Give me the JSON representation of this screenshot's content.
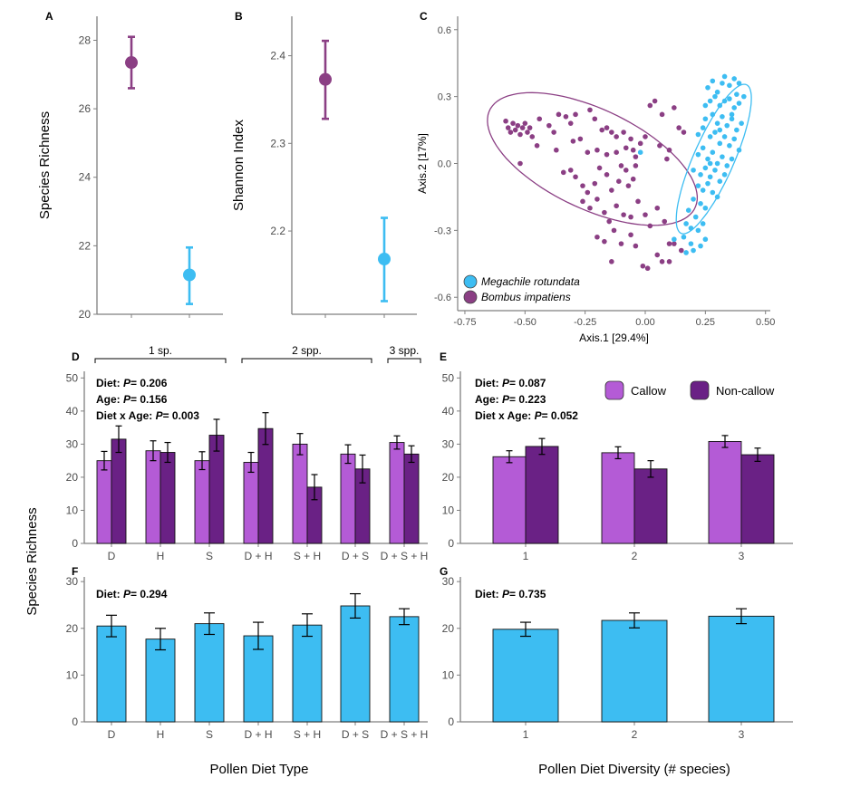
{
  "colors": {
    "megachile": "#3dbdf2",
    "bombus": "#8b3f84",
    "callow": "#b45bd6",
    "noncallow": "#6a2185",
    "diet_bar": "#3dbdf2",
    "axis": "#7f7f7f"
  },
  "labels": {
    "species_richness": "Species Richness",
    "pollen_diet_type": "Pollen Diet Type",
    "pollen_diet_diversity": "Pollen Diet Diversity (# species)"
  },
  "chart_data": [
    {
      "id": "A",
      "panel": "A",
      "type": "scatter",
      "ylabel": "Species Richness",
      "yticks": [
        "20",
        "22",
        "24",
        "26",
        "28"
      ],
      "ylim": [
        20,
        28.7
      ],
      "points": [
        {
          "group": "Bombus impatiens",
          "color": "#8b3f84",
          "y": 27.35,
          "lower": 26.6,
          "upper": 28.1
        },
        {
          "group": "Megachile rotundata",
          "color": "#3dbdf2",
          "y": 21.15,
          "lower": 20.3,
          "upper": 21.95
        }
      ]
    },
    {
      "id": "B",
      "panel": "B",
      "type": "scatter",
      "ylabel": "Shannon Index",
      "yticks": [
        "2.2",
        "2.3",
        "2.4"
      ],
      "ylim": [
        2.105,
        2.445
      ],
      "points": [
        {
          "group": "Bombus impatiens",
          "color": "#8b3f84",
          "y": 2.373,
          "lower": 2.328,
          "upper": 2.417
        },
        {
          "group": "Megachile rotundata",
          "color": "#3dbdf2",
          "y": 2.168,
          "lower": 2.12,
          "upper": 2.215
        }
      ]
    },
    {
      "id": "C",
      "panel": "C",
      "type": "scatter",
      "xlabel": "Axis.1   [29.4%]",
      "ylabel": "Axis.2   [17%]",
      "xticks": [
        "-0.75",
        "-0.50",
        "-0.25",
        "0.00",
        "0.25",
        "0.50"
      ],
      "yticks": [
        "-0.6",
        "-0.3",
        "0.0",
        "0.3",
        "0.6"
      ],
      "xlim": [
        -0.78,
        0.52
      ],
      "ylim": [
        -0.66,
        0.66
      ],
      "legend": [
        {
          "label": "Megachile rotundata",
          "color": "#3dbdf2"
        },
        {
          "label": "Bombus impatiens",
          "color": "#8b3f84"
        }
      ],
      "ellipses": [
        {
          "group": "Bombus impatiens",
          "color": "#8b3f84",
          "cx": -0.22,
          "cy": 0.02,
          "rx": 0.48,
          "ry": 0.22,
          "angle_deg": -28
        },
        {
          "group": "Megachile rotundata",
          "color": "#3dbdf2",
          "cx": 0.285,
          "cy": 0.02,
          "rx": 0.36,
          "ry": 0.085,
          "angle_deg": 68
        }
      ],
      "series": [
        {
          "name": "Bombus impatiens",
          "color": "#8b3f84",
          "points": [
            [
              -0.58,
              0.19
            ],
            [
              -0.57,
              0.16
            ],
            [
              -0.56,
              0.14
            ],
            [
              -0.55,
              0.18
            ],
            [
              -0.54,
              0.15
            ],
            [
              -0.53,
              0.17
            ],
            [
              -0.52,
              0.13
            ],
            [
              -0.51,
              0.16
            ],
            [
              -0.5,
              0.18
            ],
            [
              -0.49,
              0.14
            ],
            [
              -0.48,
              0.16
            ],
            [
              -0.47,
              0.12
            ],
            [
              -0.44,
              0.2
            ],
            [
              -0.4,
              0.17
            ],
            [
              -0.38,
              0.14
            ],
            [
              -0.36,
              0.22
            ],
            [
              -0.33,
              0.21
            ],
            [
              -0.31,
              0.18
            ],
            [
              -0.29,
              0.22
            ],
            [
              -0.27,
              0.11
            ],
            [
              -0.23,
              0.24
            ],
            [
              -0.21,
              0.2
            ],
            [
              -0.18,
              0.15
            ],
            [
              -0.16,
              0.16
            ],
            [
              -0.14,
              0.14
            ],
            [
              -0.12,
              0.12
            ],
            [
              -0.09,
              0.14
            ],
            [
              -0.06,
              0.11
            ],
            [
              -0.04,
              0.03
            ],
            [
              -0.02,
              0.09
            ],
            [
              0.0,
              0.12
            ],
            [
              0.02,
              0.26
            ],
            [
              0.04,
              0.28
            ],
            [
              0.07,
              0.22
            ],
            [
              0.12,
              0.25
            ],
            [
              0.14,
              0.16
            ],
            [
              0.16,
              0.14
            ],
            [
              0.06,
              0.08
            ],
            [
              0.1,
              0.06
            ],
            [
              0.09,
              0.02
            ],
            [
              -0.45,
              0.08
            ],
            [
              -0.52,
              0.0
            ],
            [
              -0.37,
              0.06
            ],
            [
              -0.3,
              0.1
            ],
            [
              -0.24,
              0.05
            ],
            [
              -0.2,
              0.06
            ],
            [
              -0.16,
              0.04
            ],
            [
              -0.12,
              0.05
            ],
            [
              -0.08,
              0.07
            ],
            [
              -0.05,
              0.06
            ],
            [
              -0.34,
              -0.04
            ],
            [
              -0.31,
              -0.03
            ],
            [
              -0.29,
              -0.06
            ],
            [
              -0.26,
              -0.1
            ],
            [
              -0.24,
              -0.13
            ],
            [
              -0.21,
              -0.09
            ],
            [
              -0.19,
              -0.02
            ],
            [
              -0.16,
              -0.05
            ],
            [
              -0.14,
              -0.12
            ],
            [
              -0.11,
              -0.08
            ],
            [
              -0.08,
              -0.03
            ],
            [
              -0.07,
              -0.1
            ],
            [
              -0.05,
              -0.07
            ],
            [
              -0.1,
              -0.01
            ],
            [
              -0.04,
              -0.01
            ],
            [
              -0.26,
              -0.17
            ],
            [
              -0.23,
              -0.2
            ],
            [
              -0.2,
              -0.16
            ],
            [
              -0.17,
              -0.22
            ],
            [
              -0.15,
              -0.26
            ],
            [
              -0.12,
              -0.19
            ],
            [
              -0.09,
              -0.23
            ],
            [
              -0.06,
              -0.24
            ],
            [
              -0.03,
              -0.17
            ],
            [
              0.0,
              -0.23
            ],
            [
              0.02,
              -0.28
            ],
            [
              0.05,
              -0.2
            ],
            [
              0.08,
              -0.26
            ],
            [
              0.1,
              -0.36
            ],
            [
              -0.2,
              -0.33
            ],
            [
              -0.17,
              -0.35
            ],
            [
              -0.13,
              -0.3
            ],
            [
              -0.1,
              -0.36
            ],
            [
              -0.06,
              -0.32
            ],
            [
              -0.04,
              -0.37
            ],
            [
              -0.01,
              -0.46
            ],
            [
              0.01,
              -0.47
            ],
            [
              0.05,
              -0.41
            ],
            [
              0.07,
              -0.44
            ],
            [
              0.12,
              -0.36
            ],
            [
              0.15,
              -0.39
            ],
            [
              -0.14,
              -0.44
            ],
            [
              0.1,
              -0.44
            ]
          ]
        },
        {
          "name": "Megachile rotundata",
          "color": "#3dbdf2",
          "points": [
            [
              0.26,
              0.34
            ],
            [
              0.28,
              0.37
            ],
            [
              0.3,
              0.32
            ],
            [
              0.32,
              0.36
            ],
            [
              0.33,
              0.39
            ],
            [
              0.35,
              0.35
            ],
            [
              0.37,
              0.38
            ],
            [
              0.38,
              0.31
            ],
            [
              0.39,
              0.36
            ],
            [
              0.27,
              0.28
            ],
            [
              0.29,
              0.3
            ],
            [
              0.31,
              0.26
            ],
            [
              0.33,
              0.28
            ],
            [
              0.35,
              0.29
            ],
            [
              0.37,
              0.25
            ],
            [
              0.39,
              0.27
            ],
            [
              0.41,
              0.3
            ],
            [
              0.36,
              0.22
            ],
            [
              0.25,
              0.2
            ],
            [
              0.28,
              0.22
            ],
            [
              0.3,
              0.18
            ],
            [
              0.32,
              0.21
            ],
            [
              0.34,
              0.17
            ],
            [
              0.36,
              0.2
            ],
            [
              0.38,
              0.15
            ],
            [
              0.4,
              0.18
            ],
            [
              0.22,
              0.13
            ],
            [
              0.24,
              0.16
            ],
            [
              0.27,
              0.12
            ],
            [
              0.29,
              0.14
            ],
            [
              0.31,
              0.09
            ],
            [
              0.33,
              0.12
            ],
            [
              0.35,
              0.08
            ],
            [
              0.37,
              0.11
            ],
            [
              0.39,
              0.06
            ],
            [
              0.22,
              0.04
            ],
            [
              0.24,
              0.07
            ],
            [
              0.26,
              0.02
            ],
            [
              0.28,
              0.05
            ],
            [
              0.3,
              0.0
            ],
            [
              0.32,
              0.03
            ],
            [
              0.34,
              -0.01
            ],
            [
              0.36,
              0.02
            ],
            [
              0.2,
              -0.03
            ],
            [
              0.23,
              -0.05
            ],
            [
              0.25,
              -0.02
            ],
            [
              0.27,
              -0.06
            ],
            [
              0.29,
              -0.03
            ],
            [
              0.31,
              -0.08
            ],
            [
              0.33,
              -0.05
            ],
            [
              0.22,
              -0.1
            ],
            [
              0.24,
              -0.12
            ],
            [
              0.26,
              -0.09
            ],
            [
              0.28,
              -0.13
            ],
            [
              0.3,
              -0.15
            ],
            [
              0.2,
              -0.16
            ],
            [
              0.23,
              -0.18
            ],
            [
              0.25,
              -0.2
            ],
            [
              0.18,
              -0.21
            ],
            [
              0.21,
              -0.24
            ],
            [
              0.17,
              -0.27
            ],
            [
              0.19,
              -0.29
            ],
            [
              0.22,
              -0.3
            ],
            [
              0.24,
              -0.27
            ],
            [
              0.16,
              -0.33
            ],
            [
              0.19,
              -0.36
            ],
            [
              0.2,
              -0.39
            ],
            [
              0.23,
              -0.37
            ],
            [
              0.25,
              -0.34
            ],
            [
              0.17,
              -0.4
            ],
            [
              0.12,
              -0.34
            ],
            [
              -0.02,
              0.05
            ],
            [
              0.27,
              0.0
            ],
            [
              0.31,
              0.15
            ],
            [
              0.25,
              0.26
            ]
          ]
        }
      ]
    },
    {
      "id": "D",
      "panel": "D",
      "type": "bar",
      "categories": [
        "D",
        "H",
        "S",
        "D + H",
        "S + H",
        "D + S",
        "D + S + H"
      ],
      "yticks": [
        "0",
        "10",
        "20",
        "30",
        "40",
        "50"
      ],
      "ylim": [
        0,
        52
      ],
      "series": [
        {
          "name": "Callow",
          "color": "#b45bd6",
          "values": [
            25,
            28,
            25,
            24.5,
            30,
            27,
            30.5
          ],
          "errors": [
            2.8,
            3.0,
            2.7,
            3.0,
            3.2,
            2.8,
            2.0
          ]
        },
        {
          "name": "Non-callow",
          "color": "#6a2185",
          "values": [
            31.5,
            27.5,
            32.7,
            34.7,
            17,
            22.5,
            27
          ],
          "errors": [
            4.0,
            3.0,
            4.8,
            4.8,
            3.8,
            4.2,
            2.5
          ]
        }
      ],
      "groups": [
        {
          "label": "1 sp.",
          "from": 0,
          "to": 2
        },
        {
          "label": "2 spp.",
          "from": 3,
          "to": 5
        },
        {
          "label": "3 spp.",
          "from": 6,
          "to": 6
        }
      ],
      "stats": [
        {
          "label": "Diet: ",
          "p_label": "P",
          "p_value": "= 0.206"
        },
        {
          "label": "Age: ",
          "p_label": "P",
          "p_value": "= 0.156"
        },
        {
          "label": "Diet x Age: ",
          "p_label": "P",
          "p_value": "= 0.003"
        }
      ]
    },
    {
      "id": "E",
      "panel": "E",
      "type": "bar",
      "categories": [
        "1",
        "2",
        "3"
      ],
      "yticks": [
        "0",
        "10",
        "20",
        "30",
        "40",
        "50"
      ],
      "ylim": [
        0,
        52
      ],
      "series": [
        {
          "name": "Callow",
          "color": "#b45bd6",
          "values": [
            26.2,
            27.4,
            30.8
          ],
          "errors": [
            1.8,
            1.8,
            1.8
          ]
        },
        {
          "name": "Non-callow",
          "color": "#6a2185",
          "values": [
            29.3,
            22.5,
            26.8
          ],
          "errors": [
            2.4,
            2.5,
            2.0
          ]
        }
      ],
      "legend": [
        {
          "label": "Callow",
          "color": "#b45bd6"
        },
        {
          "label": "Non-callow",
          "color": "#6a2185"
        }
      ],
      "stats": [
        {
          "label": "Diet: ",
          "p_label": "P",
          "p_value": "= 0.087"
        },
        {
          "label": "Age: ",
          "p_label": "P",
          "p_value": "= 0.223"
        },
        {
          "label": "Diet x Age: ",
          "p_label": "P",
          "p_value": "= 0.052"
        }
      ]
    },
    {
      "id": "F",
      "panel": "F",
      "type": "bar",
      "categories": [
        "D",
        "H",
        "S",
        "D + H",
        "S + H",
        "D + S",
        "D + S + H"
      ],
      "yticks": [
        "0",
        "10",
        "20",
        "30"
      ],
      "ylim": [
        0,
        31
      ],
      "series": [
        {
          "color": "#3dbdf2",
          "values": [
            20.5,
            17.7,
            21.0,
            18.4,
            20.7,
            24.8,
            22.5
          ],
          "errors": [
            2.3,
            2.3,
            2.3,
            2.9,
            2.4,
            2.6,
            1.7
          ]
        }
      ],
      "stats": [
        {
          "label": "Diet: ",
          "p_label": "P",
          "p_value": "= 0.294"
        }
      ]
    },
    {
      "id": "G",
      "panel": "G",
      "type": "bar",
      "categories": [
        "1",
        "2",
        "3"
      ],
      "yticks": [
        "0",
        "10",
        "20",
        "30"
      ],
      "ylim": [
        0,
        31
      ],
      "series": [
        {
          "color": "#3dbdf2",
          "values": [
            19.8,
            21.7,
            22.6
          ],
          "errors": [
            1.5,
            1.6,
            1.6
          ]
        }
      ],
      "stats": [
        {
          "label": "Diet: ",
          "p_label": "P",
          "p_value": "= 0.735"
        }
      ]
    }
  ]
}
